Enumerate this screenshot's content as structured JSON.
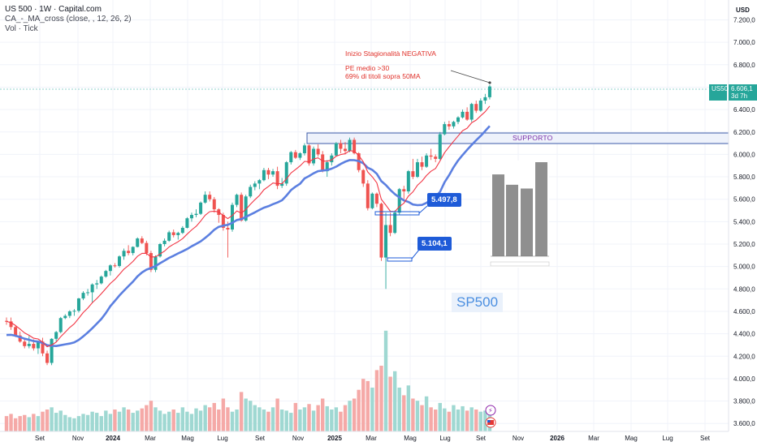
{
  "header": {
    "symbol_line": "US 500 · 1W · Capital.com",
    "indicator_line": "CA_-_MA_cross (close, , 12, 26, 2)",
    "volume_line": "Vol · Tick"
  },
  "axis": {
    "currency": "USD",
    "price_ticks": [
      "7.200,0",
      "7.000,0",
      "6.800,0",
      "6.600,0",
      "6.400,0",
      "6.200,0",
      "6.000,0",
      "5.800,0",
      "5.600,0",
      "5.400,0",
      "5.200,0",
      "5.000,0",
      "4.800,0",
      "4.600,0",
      "4.400,0",
      "4.200,0",
      "4.000,0",
      "3.800,0",
      "3.600,0"
    ],
    "time_ticks": [
      "Set",
      "Nov",
      "2024",
      "Mar",
      "Mag",
      "Lug",
      "Set",
      "Nov",
      "2025",
      "Mar",
      "Mag",
      "Lug",
      "Set",
      "Nov",
      "2026",
      "Mar",
      "Mag",
      "Lug",
      "Set"
    ]
  },
  "price_badge": {
    "symbol": "US500",
    "value": "6.606,1",
    "countdown": "3d 7h"
  },
  "annotations": {
    "note_title": "Inizio Stagionalità NEGATIVA",
    "note_line1": "PE medio >30",
    "note_line2": "69% di titoli sopra 50MA",
    "support_label": "SUPPORTO",
    "level_high": "5.497,8",
    "level_low": "5.104,1",
    "index_label": "SP500"
  },
  "colors": {
    "up": "#26a69a",
    "down": "#ef5350",
    "ma_fast": "#f23645",
    "ma_slow": "#5b7fe0",
    "support_box": "#3c5ba8",
    "callout": "#1e5bd8"
  },
  "chart_data": {
    "type": "candlestick",
    "period": "weekly",
    "price_range": [
      3600,
      7300
    ],
    "x_range": [
      "2023-08-28",
      "2026-10-26"
    ],
    "support_zone": [
      6120,
      6240
    ],
    "marked_levels": [
      5497.8,
      5104.1
    ],
    "last_price": 6606.1,
    "candles_ohlc": [
      [
        4515,
        4545,
        4480,
        4510
      ],
      [
        4510,
        4545,
        4435,
        4460
      ],
      [
        4460,
        4470,
        4370,
        4385
      ],
      [
        4385,
        4420,
        4320,
        4330
      ],
      [
        4330,
        4360,
        4270,
        4290
      ],
      [
        4290,
        4380,
        4270,
        4310
      ],
      [
        4310,
        4350,
        4250,
        4270
      ],
      [
        4270,
        4340,
        4220,
        4330
      ],
      [
        4330,
        4365,
        4200,
        4225
      ],
      [
        4225,
        4250,
        4120,
        4140
      ],
      [
        4140,
        4360,
        4120,
        4355
      ],
      [
        4355,
        4425,
        4330,
        4415
      ],
      [
        4415,
        4550,
        4405,
        4540
      ],
      [
        4540,
        4575,
        4530,
        4560
      ],
      [
        4560,
        4610,
        4540,
        4600
      ],
      [
        4600,
        4620,
        4560,
        4605
      ],
      [
        4605,
        4720,
        4590,
        4715
      ],
      [
        4715,
        4780,
        4700,
        4765
      ],
      [
        4765,
        4800,
        4740,
        4770
      ],
      [
        4770,
        4850,
        4680,
        4840
      ],
      [
        4840,
        4880,
        4800,
        4850
      ],
      [
        4850,
        4920,
        4840,
        4910
      ],
      [
        4910,
        4970,
        4900,
        4960
      ],
      [
        4960,
        5020,
        4920,
        5010
      ],
      [
        5010,
        5030,
        4990,
        5005
      ],
      [
        5005,
        5100,
        4990,
        5090
      ],
      [
        5090,
        5160,
        5060,
        5140
      ],
      [
        5140,
        5190,
        5100,
        5120
      ],
      [
        5120,
        5180,
        5100,
        5175
      ],
      [
        5175,
        5260,
        5170,
        5250
      ],
      [
        5250,
        5270,
        5200,
        5210
      ],
      [
        5210,
        5230,
        5100,
        5120
      ],
      [
        5120,
        5140,
        4950,
        4970
      ],
      [
        4970,
        5100,
        4950,
        5090
      ],
      [
        5090,
        5210,
        5080,
        5200
      ],
      [
        5200,
        5250,
        5180,
        5230
      ],
      [
        5230,
        5320,
        5220,
        5305
      ],
      [
        5305,
        5330,
        5260,
        5280
      ],
      [
        5280,
        5310,
        5240,
        5300
      ],
      [
        5300,
        5360,
        5290,
        5345
      ],
      [
        5345,
        5440,
        5340,
        5430
      ],
      [
        5430,
        5480,
        5400,
        5460
      ],
      [
        5460,
        5510,
        5440,
        5470
      ],
      [
        5470,
        5580,
        5460,
        5570
      ],
      [
        5570,
        5670,
        5560,
        5640
      ],
      [
        5640,
        5670,
        5580,
        5600
      ],
      [
        5600,
        5620,
        5480,
        5510
      ],
      [
        5510,
        5520,
        5390,
        5460
      ],
      [
        5460,
        5480,
        5320,
        5345
      ],
      [
        5345,
        5400,
        5080,
        5330
      ],
      [
        5330,
        5570,
        5310,
        5550
      ],
      [
        5550,
        5650,
        5530,
        5640
      ],
      [
        5640,
        5660,
        5400,
        5410
      ],
      [
        5410,
        5640,
        5400,
        5625
      ],
      [
        5625,
        5730,
        5610,
        5710
      ],
      [
        5710,
        5760,
        5680,
        5740
      ],
      [
        5740,
        5780,
        5690,
        5770
      ],
      [
        5770,
        5880,
        5760,
        5860
      ],
      [
        5860,
        5880,
        5780,
        5820
      ],
      [
        5820,
        5870,
        5800,
        5850
      ],
      [
        5850,
        5890,
        5690,
        5720
      ],
      [
        5720,
        5790,
        5700,
        5740
      ],
      [
        5740,
        5940,
        5720,
        5930
      ],
      [
        5930,
        6030,
        5910,
        6020
      ],
      [
        6020,
        6040,
        5960,
        5970
      ],
      [
        5970,
        6020,
        5950,
        6010
      ],
      [
        6010,
        6100,
        5990,
        6080
      ],
      [
        6080,
        6090,
        5900,
        5920
      ],
      [
        5920,
        6070,
        5900,
        6050
      ],
      [
        6050,
        6090,
        5980,
        6000
      ],
      [
        6000,
        6030,
        5840,
        5850
      ],
      [
        5850,
        5950,
        5800,
        5930
      ],
      [
        5930,
        6010,
        5900,
        5990
      ],
      [
        5990,
        6110,
        5980,
        6100
      ],
      [
        6100,
        6130,
        6010,
        6050
      ],
      [
        6050,
        6110,
        6000,
        6030
      ],
      [
        6030,
        6150,
        6020,
        6130
      ],
      [
        6130,
        6150,
        6000,
        6010
      ],
      [
        6010,
        6020,
        5840,
        5860
      ],
      [
        5860,
        5870,
        5710,
        5740
      ],
      [
        5740,
        5770,
        5500,
        5520
      ],
      [
        5520,
        5660,
        5510,
        5650
      ],
      [
        5650,
        5660,
        5530,
        5560
      ],
      [
        5560,
        5570,
        5050,
        5080
      ],
      [
        5080,
        5480,
        4800,
        5370
      ],
      [
        5370,
        5480,
        5270,
        5300
      ],
      [
        5300,
        5500,
        5290,
        5480
      ],
      [
        5480,
        5700,
        5460,
        5690
      ],
      [
        5690,
        5720,
        5600,
        5670
      ],
      [
        5670,
        5860,
        5650,
        5850
      ],
      [
        5850,
        5960,
        5780,
        5800
      ],
      [
        5800,
        5960,
        5790,
        5930
      ],
      [
        5930,
        5980,
        5860,
        5890
      ],
      [
        5890,
        6010,
        5880,
        5990
      ],
      [
        5990,
        6050,
        5950,
        5980
      ],
      [
        5980,
        6000,
        5930,
        5960
      ],
      [
        5960,
        6200,
        5950,
        6180
      ],
      [
        6180,
        6290,
        6170,
        6270
      ],
      [
        6270,
        6300,
        6220,
        6250
      ],
      [
        6250,
        6300,
        6230,
        6290
      ],
      [
        6290,
        6340,
        6270,
        6330
      ],
      [
        6330,
        6400,
        6320,
        6380
      ],
      [
        6380,
        6420,
        6300,
        6310
      ],
      [
        6310,
        6460,
        6290,
        6450
      ],
      [
        6450,
        6480,
        6370,
        6390
      ],
      [
        6390,
        6500,
        6380,
        6480
      ],
      [
        6480,
        6540,
        6450,
        6510
      ],
      [
        6510,
        6620,
        6490,
        6606.1
      ]
    ],
    "volume_relative": [
      0.14,
      0.16,
      0.12,
      0.14,
      0.15,
      0.13,
      0.16,
      0.14,
      0.18,
      0.2,
      0.22,
      0.17,
      0.19,
      0.15,
      0.13,
      0.12,
      0.14,
      0.16,
      0.15,
      0.18,
      0.17,
      0.14,
      0.19,
      0.16,
      0.2,
      0.18,
      0.22,
      0.2,
      0.17,
      0.19,
      0.21,
      0.24,
      0.28,
      0.22,
      0.19,
      0.16,
      0.18,
      0.2,
      0.17,
      0.22,
      0.18,
      0.16,
      0.21,
      0.19,
      0.24,
      0.22,
      0.26,
      0.2,
      0.3,
      0.22,
      0.18,
      0.2,
      0.36,
      0.3,
      0.28,
      0.24,
      0.22,
      0.2,
      0.18,
      0.22,
      0.3,
      0.2,
      0.19,
      0.17,
      0.26,
      0.2,
      0.22,
      0.25,
      0.19,
      0.24,
      0.3,
      0.23,
      0.2,
      0.22,
      0.18,
      0.24,
      0.28,
      0.3,
      0.38,
      0.48,
      0.46,
      0.4,
      0.56,
      0.6,
      0.92,
      0.5,
      0.55,
      0.4,
      0.33,
      0.42,
      0.3,
      0.28,
      0.24,
      0.32,
      0.22,
      0.2,
      0.26,
      0.21,
      0.18,
      0.24,
      0.2,
      0.23,
      0.19,
      0.22,
      0.2,
      0.18,
      0.19,
      0.21
    ],
    "seasonality_inset": {
      "type": "bar",
      "values": [
        0.87,
        0.76,
        0.72,
        1.0
      ]
    }
  }
}
